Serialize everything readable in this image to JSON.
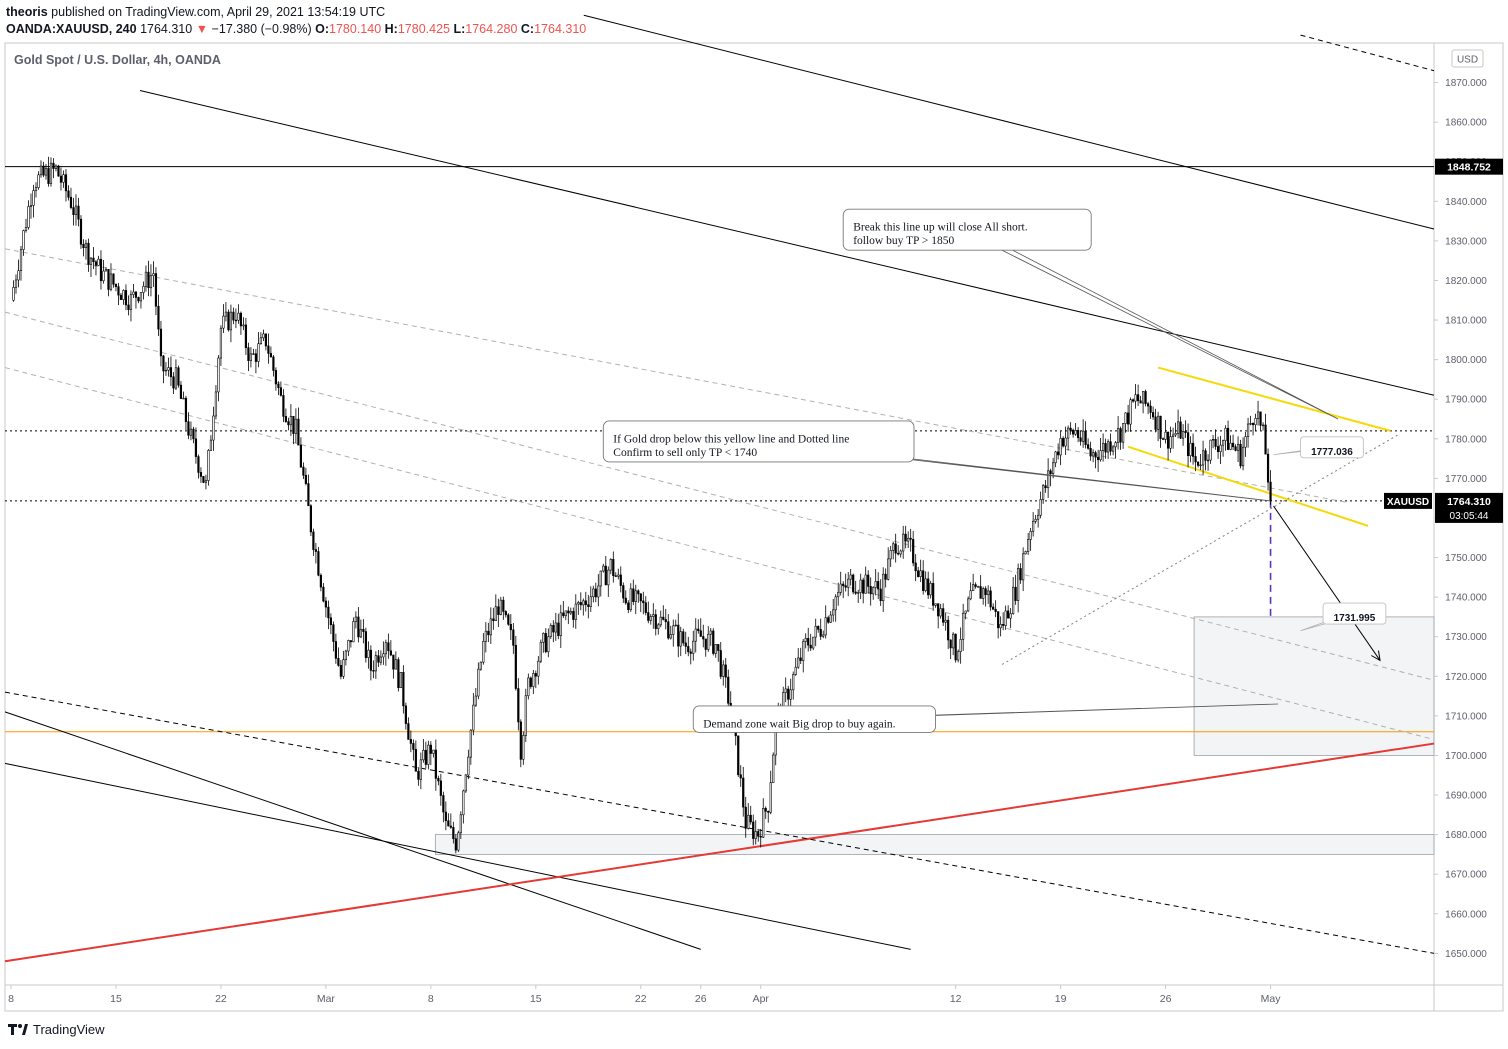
{
  "header": {
    "line1_user": "theoris",
    "line1_rest": " published on TradingView.com, April 29, 2021 13:54:19 UTC",
    "symbol": "OANDA:XAUUSD, 240",
    "last": "1764.310",
    "change": "−17.380 (−0.98%)",
    "o_label": "O:",
    "o": "1780.140",
    "h_label": "H:",
    "h": "1780.425",
    "l_label": "L:",
    "l": "1764.280",
    "c_label": "C:",
    "c": "1764.310"
  },
  "footer": {
    "brand": "TradingView"
  },
  "chart_data": {
    "type": "candlestick",
    "title": "Gold Spot / U.S. Dollar, 4h, OANDA",
    "currency": "USD",
    "ylim": [
      1642,
      1880
    ],
    "y_ticks": [
      1650,
      1660,
      1670,
      1680,
      1690,
      1700,
      1710,
      1720,
      1730,
      1740,
      1750,
      1760,
      1770,
      1780,
      1790,
      1800,
      1810,
      1820,
      1830,
      1840,
      1850,
      1860,
      1870
    ],
    "y_tick_labels": [
      "1650.000",
      "1660.000",
      "1670.000",
      "1680.000",
      "1690.000",
      "1700.000",
      "1710.000",
      "1720.000",
      "1730.000",
      "1740.000",
      "1750.000",
      "1760.000",
      "1770.000",
      "1780.000",
      "1790.000",
      "1800.000",
      "1810.000",
      "1820.000",
      "1830.000",
      "1840.000",
      "1850.000",
      "1860.000",
      "1870.000"
    ],
    "x_ticks": [
      "8",
      "15",
      "22",
      "Mar",
      "8",
      "15",
      "22",
      "26",
      "Apr",
      "12",
      "19",
      "26",
      "May"
    ],
    "x_tick_days": [
      0,
      7,
      14,
      21,
      28,
      35,
      42,
      46,
      50,
      63,
      70,
      77,
      84
    ],
    "x_range_days": [
      -0.4,
      94.9
    ],
    "price_path": [
      [
        0,
        1815
      ],
      [
        1.5,
        1845
      ],
      [
        3,
        1848
      ],
      [
        4,
        1840
      ],
      [
        5,
        1828
      ],
      [
        6,
        1822
      ],
      [
        8,
        1815
      ],
      [
        9.5,
        1822
      ],
      [
        10,
        1798
      ],
      [
        11,
        1795
      ],
      [
        12,
        1780
      ],
      [
        13,
        1768
      ],
      [
        14,
        1808
      ],
      [
        15,
        1812
      ],
      [
        16,
        1800
      ],
      [
        17,
        1805
      ],
      [
        18,
        1790
      ],
      [
        19,
        1782
      ],
      [
        20,
        1758
      ],
      [
        21,
        1738
      ],
      [
        22,
        1720
      ],
      [
        23,
        1735
      ],
      [
        24,
        1722
      ],
      [
        25,
        1730
      ],
      [
        26,
        1718
      ],
      [
        27,
        1695
      ],
      [
        28,
        1702
      ],
      [
        28.5,
        1692
      ],
      [
        29,
        1682
      ],
      [
        29.7,
        1678
      ],
      [
        30.5,
        1702
      ],
      [
        31.5,
        1728
      ],
      [
        32.5,
        1738
      ],
      [
        33.5,
        1728
      ],
      [
        34,
        1702
      ],
      [
        34.5,
        1718
      ],
      [
        35.5,
        1728
      ],
      [
        37,
        1735
      ],
      [
        38,
        1738
      ],
      [
        39,
        1742
      ],
      [
        40,
        1748
      ],
      [
        41,
        1740
      ],
      [
        42,
        1738
      ],
      [
        43,
        1735
      ],
      [
        44,
        1732
      ],
      [
        45,
        1728
      ],
      [
        46,
        1730
      ],
      [
        47,
        1728
      ],
      [
        48,
        1712
      ],
      [
        49,
        1683
      ],
      [
        49.8,
        1680
      ],
      [
        50.5,
        1688
      ],
      [
        51,
        1708
      ],
      [
        52,
        1718
      ],
      [
        53,
        1728
      ],
      [
        54,
        1732
      ],
      [
        55,
        1740
      ],
      [
        56,
        1744
      ],
      [
        58,
        1742
      ],
      [
        59,
        1754
      ],
      [
        60,
        1752
      ],
      [
        61,
        1743
      ],
      [
        62,
        1737
      ],
      [
        63,
        1726
      ],
      [
        64,
        1740
      ],
      [
        65,
        1742
      ],
      [
        66,
        1732
      ],
      [
        67,
        1742
      ],
      [
        68,
        1758
      ],
      [
        69,
        1768
      ],
      [
        70,
        1780
      ],
      [
        71,
        1782
      ],
      [
        72,
        1776
      ],
      [
        73,
        1778
      ],
      [
        74,
        1782
      ],
      [
        75,
        1790
      ],
      [
        76,
        1788
      ],
      [
        77,
        1780
      ],
      [
        78,
        1782
      ],
      [
        79,
        1774
      ],
      [
        80,
        1778
      ],
      [
        81,
        1780
      ],
      [
        82,
        1776
      ],
      [
        83,
        1788
      ],
      [
        83.6,
        1779
      ],
      [
        84,
        1764.31
      ]
    ],
    "last_price": "1764.310",
    "last_price_symbol": "XAUUSD",
    "countdown": "03:05:44",
    "horizontal_levels": [
      {
        "price": 1848.752,
        "label": "1848.752",
        "color": "#000000",
        "style": "solid"
      },
      {
        "price": 1706,
        "label": "",
        "color": "#ff9800",
        "style": "solid"
      },
      {
        "price": 1782,
        "label": "",
        "color": "#000000",
        "style": "dotted"
      },
      {
        "price": 1764.31,
        "label": "",
        "color": "#000000",
        "style": "dotted"
      }
    ],
    "trend_lines": [
      {
        "from": [
          8.6,
          1868
        ],
        "to": [
          94.9,
          1791
        ],
        "color": "#000000",
        "style": "solid"
      },
      {
        "from": [
          38.2,
          1887
        ],
        "to": [
          94.9,
          1833
        ],
        "color": "#000000",
        "style": "solid"
      },
      {
        "from": [
          -0.4,
          1711
        ],
        "to": [
          46,
          1651
        ],
        "color": "#000000",
        "style": "solid"
      },
      {
        "from": [
          -0.4,
          1698
        ],
        "to": [
          60,
          1651
        ],
        "color": "#000000",
        "style": "solid"
      },
      {
        "from": [
          -0.4,
          1648
        ],
        "to": [
          94.9,
          1703
        ],
        "color": "#e53935",
        "style": "solid",
        "width": 2
      },
      {
        "from": [
          -0.4,
          1716
        ],
        "to": [
          94.9,
          1650
        ],
        "color": "#000000",
        "style": "dashed"
      },
      {
        "from": [
          86,
          1882
        ],
        "to": [
          94.9,
          1873
        ],
        "color": "#000000",
        "style": "dashed"
      },
      {
        "from": [
          -0.4,
          1828
        ],
        "to": [
          89,
          1764
        ],
        "color": "#b0b0b0",
        "style": "dashed"
      },
      {
        "from": [
          -0.4,
          1812
        ],
        "to": [
          94.9,
          1719
        ],
        "color": "#b0b0b0",
        "style": "dashed"
      },
      {
        "from": [
          -0.4,
          1798
        ],
        "to": [
          94.9,
          1704
        ],
        "color": "#b0b0b0",
        "style": "dashed"
      },
      {
        "from": [
          76.5,
          1798
        ],
        "to": [
          92,
          1782
        ],
        "color": "#f5d90a",
        "style": "solid",
        "width": 2
      },
      {
        "from": [
          74.5,
          1778
        ],
        "to": [
          90.5,
          1758
        ],
        "color": "#f5d90a",
        "style": "solid",
        "width": 2
      },
      {
        "from": [
          66.1,
          1723
        ],
        "to": [
          92.5,
          1781
        ],
        "color": "#808080",
        "style": "dotted"
      }
    ],
    "zones": [
      {
        "from": [
          78.9,
          1735
        ],
        "to": [
          94.9,
          1700
        ],
        "label": ""
      },
      {
        "from": [
          28.3,
          1680
        ],
        "to": [
          94.9,
          1675
        ],
        "label": ""
      }
    ],
    "projection": {
      "from": [
        84,
        1764.31
      ],
      "to": [
        84,
        1734
      ],
      "color": "#5e35b1",
      "style": "dashed"
    },
    "arrow": {
      "from": [
        84.2,
        1763
      ],
      "to": [
        91.3,
        1724
      ]
    },
    "price_labels": [
      {
        "text": "1777.036",
        "at": [
          86,
          1780.5
        ],
        "anchor": [
          84.2,
          1776
        ]
      },
      {
        "text": "1731.995",
        "at": [
          87.5,
          1738.5
        ],
        "anchor": [
          86,
          1731.5
        ]
      }
    ],
    "annotations": [
      {
        "lines": [
          "Break this line up will close All short.",
          "follow buy TP > 1850"
        ],
        "at": [
          55.5,
          1838
        ],
        "anchor": [
          88.5,
          1785
        ]
      },
      {
        "lines": [
          "If Gold drop below this yellow line and Dotted line",
          "Confirm to sell only TP < 1740"
        ],
        "at": [
          39.5,
          1784.5
        ],
        "anchor": [
          84,
          1764.3
        ]
      },
      {
        "lines": [
          "Demand zone wait Big drop to buy again."
        ],
        "at": [
          45.5,
          1712.5
        ],
        "anchor": [
          84.5,
          1713
        ]
      }
    ]
  }
}
